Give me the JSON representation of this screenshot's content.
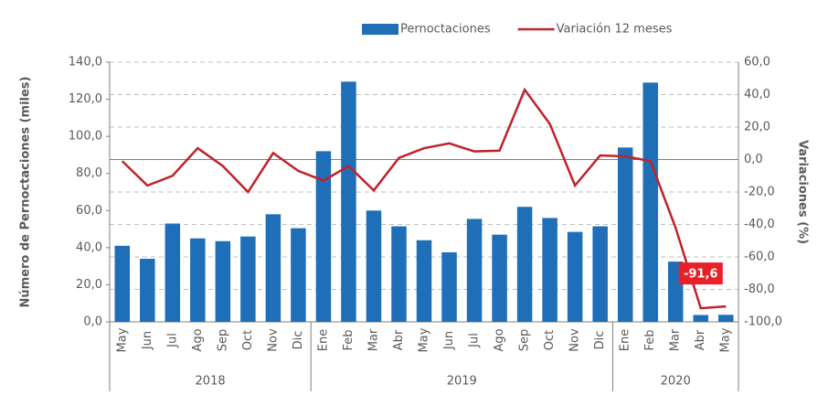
{
  "chart_data": {
    "type": "bar_line",
    "y_label": "Número de Pernoctaciones (miles)",
    "y2_label": "Variaciones (%)",
    "categories": [
      "May",
      "Jun",
      "Jul",
      "Ago",
      "Sep",
      "Oct",
      "Nov",
      "Dic",
      "Ene",
      "Feb",
      "Mar",
      "Abr",
      "May",
      "Jun",
      "Jul",
      "Ago",
      "Sep",
      "Oct",
      "Nov",
      "Dic",
      "Ene",
      "Feb",
      "Mar",
      "Abr",
      "May"
    ],
    "groups": [
      "2018",
      "2019",
      "2020"
    ],
    "series": [
      {
        "name": "Pernoctaciones",
        "color": "#1f6fb8",
        "kind": "bar",
        "axis": "y",
        "values": [
          41,
          34,
          53,
          45,
          43.5,
          46,
          58,
          50.5,
          92,
          129.5,
          60,
          51.5,
          44,
          37.5,
          55.5,
          47,
          62,
          56,
          48.5,
          51.5,
          94,
          129,
          32.5,
          3.7,
          3.8
        ]
      },
      {
        "name": "Variación 12 meses",
        "color": "#c0222a",
        "kind": "line",
        "axis": "y2",
        "values": [
          -1,
          -16,
          -10,
          7,
          -4,
          -20,
          4,
          -7,
          -13,
          -4,
          -19,
          1,
          7,
          10,
          5,
          5.5,
          43,
          22,
          -16,
          2.5,
          2,
          -1,
          -42,
          -91.6,
          -90.5
        ],
        "value_labels": [
          null,
          null,
          null,
          null,
          null,
          null,
          null,
          null,
          null,
          null,
          null,
          null,
          null,
          null,
          null,
          null,
          null,
          null,
          null,
          null,
          null,
          null,
          null,
          "-91,6",
          null
        ]
      }
    ],
    "ylim": [
      0,
      140
    ],
    "yticks": [
      {
        "value": 0,
        "label": "0,0"
      },
      {
        "value": 20,
        "label": "20,0"
      },
      {
        "value": 40,
        "label": "40,0"
      },
      {
        "value": 60,
        "label": "60,0"
      },
      {
        "value": 80,
        "label": "80,0"
      },
      {
        "value": 100,
        "label": "100,0"
      },
      {
        "value": 120,
        "label": "120,0"
      },
      {
        "value": 140,
        "label": "140,0"
      }
    ],
    "y2lim": [
      -100,
      60
    ],
    "y2ticks": [
      {
        "value": -100,
        "label": "-100,0"
      },
      {
        "value": -80,
        "label": "-80,0"
      },
      {
        "value": -60,
        "label": "-60,0"
      },
      {
        "value": -40,
        "label": "-40,0"
      },
      {
        "value": -20,
        "label": "-20,0"
      },
      {
        "value": 0,
        "label": "0,0"
      },
      {
        "value": 20,
        "label": "20,0"
      },
      {
        "value": 40,
        "label": "40,0"
      },
      {
        "value": 60,
        "label": "60,0"
      }
    ],
    "grid": "y2"
  }
}
